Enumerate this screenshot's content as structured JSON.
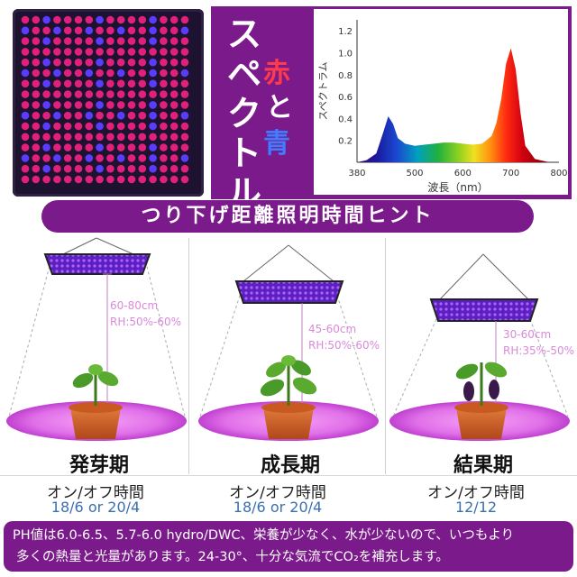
{
  "title": {
    "main": "スペクトル",
    "aka": "赤",
    "to": "と",
    "ao": "青"
  },
  "spectrum_chart": {
    "ylabel": "スペクトラム",
    "xlabel": "波長（nm）",
    "yticks": [
      "1.2",
      "1.0",
      "0.8",
      "0.6",
      "0.4",
      "0.2"
    ],
    "xticks": [
      "380",
      "500",
      "600",
      "700",
      "800"
    ]
  },
  "chart_data": {
    "type": "area",
    "xlabel": "波長（nm）",
    "ylabel": "スペクトラム",
    "xlim": [
      380,
      800
    ],
    "ylim": [
      0,
      1.3
    ],
    "x": [
      380,
      400,
      420,
      435,
      445,
      455,
      465,
      480,
      500,
      520,
      540,
      560,
      580,
      600,
      620,
      640,
      660,
      670,
      680,
      690,
      700,
      710,
      720,
      730,
      750,
      780,
      800
    ],
    "series": [
      {
        "values": [
          0.0,
          0.02,
          0.08,
          0.28,
          0.42,
          0.35,
          0.22,
          0.17,
          0.15,
          0.16,
          0.17,
          0.18,
          0.18,
          0.17,
          0.16,
          0.17,
          0.24,
          0.36,
          0.58,
          0.9,
          1.04,
          0.85,
          0.45,
          0.15,
          0.03,
          0.0,
          0.0
        ]
      }
    ]
  },
  "banner": "つり下げ距離照明時間ヒント",
  "stages": [
    {
      "name": "発芽期",
      "distance": "60-80cm",
      "rh": "RH:50%-60%",
      "hours_title": "オン/オフ時間",
      "hours": "18/6 or 20/4"
    },
    {
      "name": "成長期",
      "distance": "45-60cm",
      "rh": "RH:50%-60%",
      "hours_title": "オン/オフ時間",
      "hours": "18/6 or 20/4"
    },
    {
      "name": "結果期",
      "distance": "30-60cm",
      "rh": "RH:35%-50%",
      "hours_title": "オン/オフ時間",
      "hours": "12/12"
    }
  ],
  "footer": {
    "line1": "PH値は6.0-6.5、5.7-6.0 hydro/DWC、栄養が少なく、水が少ないので、いつもより",
    "line2": "多くの熱量と光量があります。24-30°、十分な気流でCO₂を補充します。"
  },
  "colors": {
    "purple": "#7b1a8a",
    "red_led": "#e0207a",
    "blue_led": "#5a3cff",
    "pink_text": "#d98ad9"
  }
}
